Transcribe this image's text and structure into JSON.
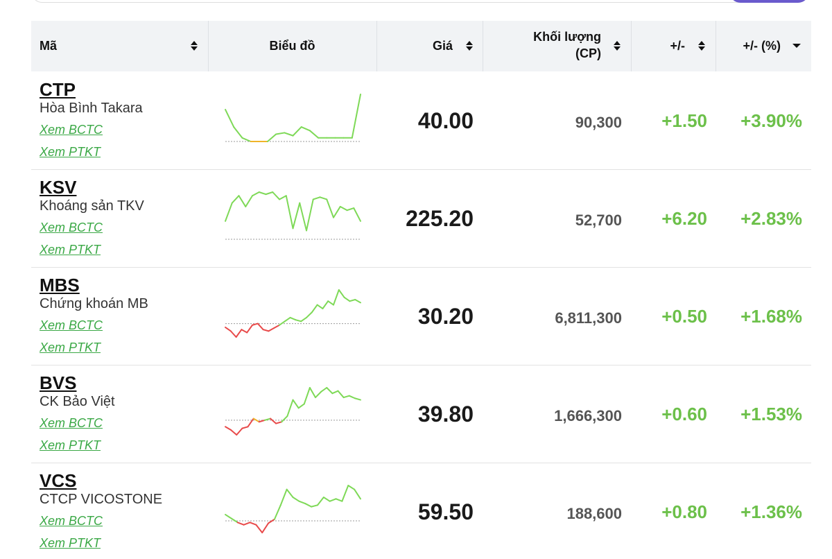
{
  "header": {
    "columns": [
      "Mã",
      "Biểu đồ",
      "Giá",
      [
        "Khối lượng",
        "(CP)"
      ],
      "+/-",
      "+/- (%)"
    ]
  },
  "rows": [
    {
      "ticker": "CTP",
      "name": "Hòa Bình Takara",
      "links": [
        "Xem BCTC",
        "Xem PTKT"
      ],
      "price": "40.00",
      "volume": "90,300",
      "change": "+1.50",
      "change_pct": "+3.90%",
      "sparkline": {
        "ref": 0,
        "values": [
          44,
          20,
          5,
          0,
          0,
          0,
          10,
          12,
          8,
          20,
          15,
          5,
          5,
          5,
          5,
          5,
          65
        ]
      }
    },
    {
      "ticker": "KSV",
      "name": "Khoáng sản TKV",
      "links": [
        "Xem BCTC",
        "Xem PTKT"
      ],
      "price": "225.20",
      "volume": "52,700",
      "change": "+6.20",
      "change_pct": "+2.83%",
      "sparkline": {
        "ref": 0,
        "values": [
          25,
          50,
          60,
          45,
          60,
          65,
          62,
          65,
          55,
          60,
          15,
          50,
          12,
          55,
          58,
          55,
          30,
          45,
          40,
          43,
          25
        ]
      }
    },
    {
      "ticker": "MBS",
      "name": "Chứng khoán MB",
      "links": [
        "Xem BCTC",
        "Xem PTKT"
      ],
      "price": "30.20",
      "volume": "6,811,300",
      "change": "+0.50",
      "change_pct": "+1.68%",
      "sparkline": {
        "ref": 0,
        "values": [
          -5,
          -10,
          -18,
          -8,
          -12,
          -2,
          0,
          -8,
          -10,
          -6,
          -2,
          3,
          8,
          5,
          3,
          8,
          15,
          25,
          20,
          30,
          25,
          45,
          35,
          30,
          32,
          28
        ]
      }
    },
    {
      "ticker": "BVS",
      "name": "CK Bảo Việt",
      "links": [
        "Xem BCTC",
        "Xem PTKT"
      ],
      "price": "39.80",
      "volume": "1,666,300",
      "change": "+0.60",
      "change_pct": "+1.53%",
      "sparkline": {
        "ref": 0,
        "values": [
          -8,
          -12,
          -18,
          -10,
          -8,
          2,
          -2,
          0,
          2,
          -4,
          -2,
          5,
          25,
          15,
          20,
          40,
          28,
          35,
          40,
          33,
          36,
          28,
          30,
          27,
          25
        ]
      }
    },
    {
      "ticker": "VCS",
      "name": "CTCP VICOSTONE",
      "links": [
        "Xem BCTC",
        "Xem PTKT"
      ],
      "price": "59.50",
      "volume": "188,600",
      "change": "+0.80",
      "change_pct": "+1.36%",
      "sparkline": {
        "ref": 0,
        "values": [
          8,
          3,
          -2,
          -5,
          -2,
          -5,
          -15,
          -3,
          2,
          20,
          40,
          30,
          25,
          22,
          18,
          20,
          30,
          25,
          28,
          25,
          45,
          40,
          28
        ]
      }
    }
  ]
}
